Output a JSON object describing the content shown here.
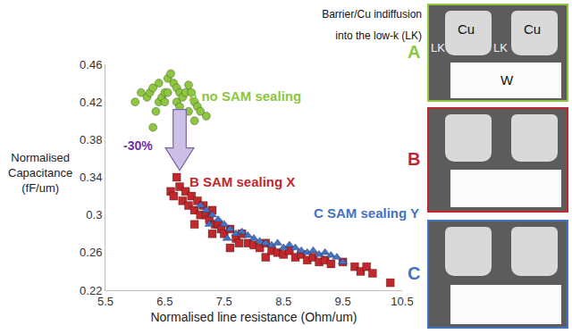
{
  "chart_data": {
    "type": "scatter",
    "xlabel": "Normalised line resistance (Ohm/um)",
    "ylabel": [
      "Normalised",
      "Capacitance",
      "(fF/um)"
    ],
    "xlim": [
      5.5,
      10.5
    ],
    "xticks": [
      5.5,
      6.5,
      7.5,
      8.5,
      9.5,
      10.5
    ],
    "ylim": [
      0.22,
      0.46
    ],
    "yticks": [
      0.22,
      0.26,
      0.3,
      0.34,
      0.38,
      0.42,
      0.46
    ],
    "grid": false,
    "annotations": [
      {
        "text": "-30%",
        "color": "#7030a0"
      }
    ],
    "series": [
      {
        "name": "A no SAM sealing",
        "color": "#8dc63f",
        "marker": "circle",
        "x": [
          6.0,
          6.1,
          6.2,
          6.25,
          6.3,
          6.3,
          6.35,
          6.4,
          6.4,
          6.45,
          6.5,
          6.5,
          6.55,
          6.55,
          6.6,
          6.65,
          6.7,
          6.7,
          6.75,
          6.75,
          6.8,
          6.85,
          6.9,
          6.9,
          6.95,
          7.0,
          7.0,
          7.05,
          7.1,
          7.2
        ],
        "values": [
          0.42,
          0.43,
          0.425,
          0.43,
          0.435,
          0.393,
          0.41,
          0.42,
          0.44,
          0.425,
          0.43,
          0.42,
          0.445,
          0.43,
          0.45,
          0.44,
          0.435,
          0.42,
          0.43,
          0.415,
          0.425,
          0.43,
          0.438,
          0.41,
          0.43,
          0.42,
          0.4,
          0.415,
          0.41,
          0.405
        ]
      },
      {
        "name": "B SAM sealing X",
        "color": "#c0282d",
        "marker": "square",
        "x": [
          6.6,
          6.65,
          6.7,
          6.75,
          6.8,
          6.85,
          6.9,
          6.95,
          7.0,
          7.0,
          7.05,
          7.1,
          7.15,
          7.2,
          7.25,
          7.3,
          7.3,
          7.35,
          7.4,
          7.45,
          7.5,
          7.6,
          7.6,
          7.7,
          7.75,
          7.8,
          7.9,
          8.0,
          8.1,
          8.2,
          8.2,
          8.3,
          8.4,
          8.5,
          8.6,
          8.7,
          8.8,
          8.9,
          9.0,
          9.1,
          9.2,
          9.3,
          9.5,
          9.7,
          9.8,
          9.9,
          10.0,
          10.3
        ],
        "values": [
          0.325,
          0.32,
          0.34,
          0.33,
          0.315,
          0.325,
          0.31,
          0.32,
          0.305,
          0.29,
          0.315,
          0.3,
          0.31,
          0.3,
          0.295,
          0.305,
          0.28,
          0.29,
          0.29,
          0.285,
          0.28,
          0.285,
          0.265,
          0.275,
          0.27,
          0.28,
          0.27,
          0.268,
          0.265,
          0.27,
          0.255,
          0.262,
          0.26,
          0.258,
          0.262,
          0.255,
          0.258,
          0.252,
          0.255,
          0.25,
          0.252,
          0.248,
          0.25,
          0.245,
          0.24,
          0.245,
          0.238,
          0.228
        ]
      },
      {
        "name": "C SAM sealing Y",
        "color": "#4472c4",
        "marker": "triangle-up",
        "x": [
          7.1,
          7.2,
          7.25,
          7.3,
          7.4,
          7.5,
          7.55,
          7.6,
          7.7,
          7.8,
          7.9,
          8.0,
          8.1,
          8.2,
          8.3,
          8.4,
          8.5,
          8.6,
          8.7,
          8.8,
          8.9,
          9.0,
          9.1,
          9.2,
          9.3,
          9.4,
          9.5
        ],
        "values": [
          0.31,
          0.305,
          0.29,
          0.3,
          0.295,
          0.29,
          0.275,
          0.285,
          0.28,
          0.282,
          0.278,
          0.275,
          0.272,
          0.27,
          0.268,
          0.27,
          0.265,
          0.268,
          0.265,
          0.262,
          0.26,
          0.262,
          0.258,
          0.26,
          0.257,
          0.255,
          0.25
        ]
      }
    ]
  },
  "micrographs": {
    "note": [
      "Barrier/Cu indiffusion",
      "into the low-k (LK)"
    ],
    "panels": [
      {
        "label": "A",
        "color": "#8dc63f",
        "texts": [
          "LK",
          "Cu",
          "LK",
          "Cu",
          "W"
        ]
      },
      {
        "label": "B",
        "color": "#c0282d",
        "texts": []
      },
      {
        "label": "C",
        "color": "#4472c4",
        "texts": []
      }
    ]
  }
}
